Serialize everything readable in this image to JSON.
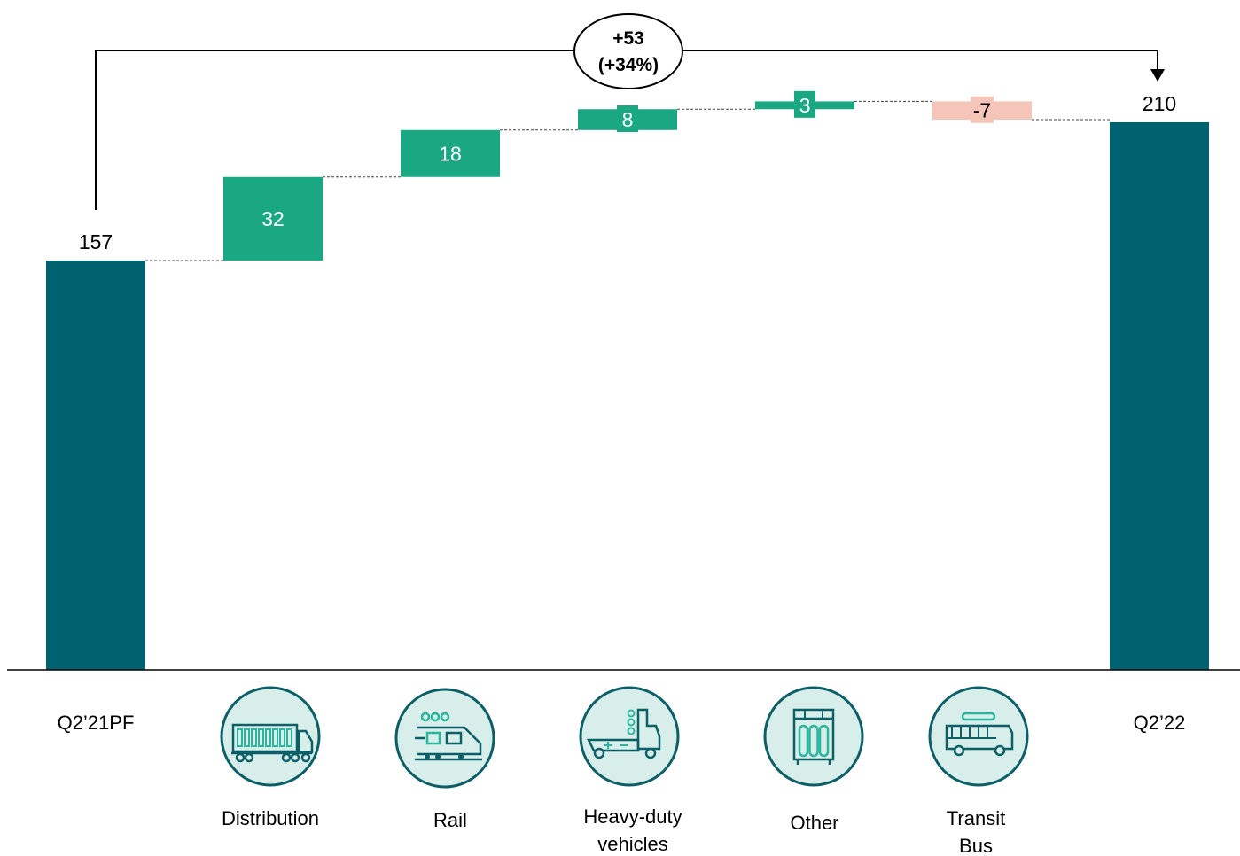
{
  "chart_data": {
    "type": "waterfall",
    "title": "",
    "xlabel": "",
    "ylabel": "",
    "ylim": [
      0,
      220
    ],
    "grid": false,
    "start": {
      "label": "Q2’21PF",
      "value": 157,
      "value_label": "157"
    },
    "steps": [
      {
        "label": "Distribution",
        "value": 32,
        "value_label": "32",
        "icon": "truck-icon"
      },
      {
        "label": "Rail",
        "value": 18,
        "value_label": "18",
        "icon": "train-icon"
      },
      {
        "label": "Heavy-duty vehicles",
        "label_lines": [
          "Heavy-duty",
          "vehicles"
        ],
        "value": 8,
        "value_label": "8",
        "icon": "heavy-truck-icon"
      },
      {
        "label": "Other",
        "value": 3,
        "value_label": "3",
        "icon": "gas-cylinders-icon"
      },
      {
        "label": "Transit Bus",
        "label_lines": [
          "Transit",
          "Bus"
        ],
        "value": -7,
        "value_label": "-7",
        "icon": "bus-icon"
      }
    ],
    "end": {
      "label": "Q2’22",
      "value": 210,
      "value_label": "210"
    },
    "change_callout": {
      "line1": "+53",
      "line2": "(+34%)"
    }
  },
  "colors": {
    "total_bar": "#00626e",
    "increase_bar": "#1aa882",
    "decrease_bar": "#f6c5b9",
    "icon_fill": "#d7eeea",
    "icon_stroke": "#0c5f66",
    "icon_accent": "#2bb59c",
    "text": "#000000",
    "value_text_on_bar": "#ffffff"
  }
}
